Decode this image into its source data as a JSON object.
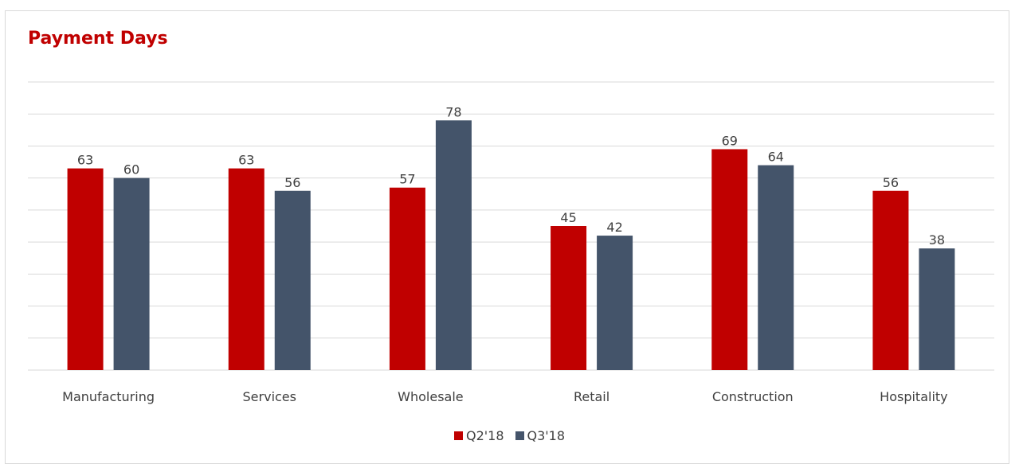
{
  "chart_data": {
    "type": "bar",
    "title": "Payment Days",
    "categories": [
      "Manufacturing",
      "Services",
      "Wholesale",
      "Retail",
      "Construction",
      "Hospitality"
    ],
    "series": [
      {
        "name": "Q2'18",
        "values": [
          63,
          63,
          57,
          45,
          69,
          56
        ],
        "color": "#c00000"
      },
      {
        "name": "Q3'18",
        "values": [
          60,
          56,
          78,
          42,
          64,
          38
        ],
        "color": "#44546a"
      }
    ],
    "ylim": [
      0,
      90
    ],
    "grid": true,
    "y_axis_labels_shown": false,
    "data_labels": true,
    "legend_position": "bottom"
  }
}
